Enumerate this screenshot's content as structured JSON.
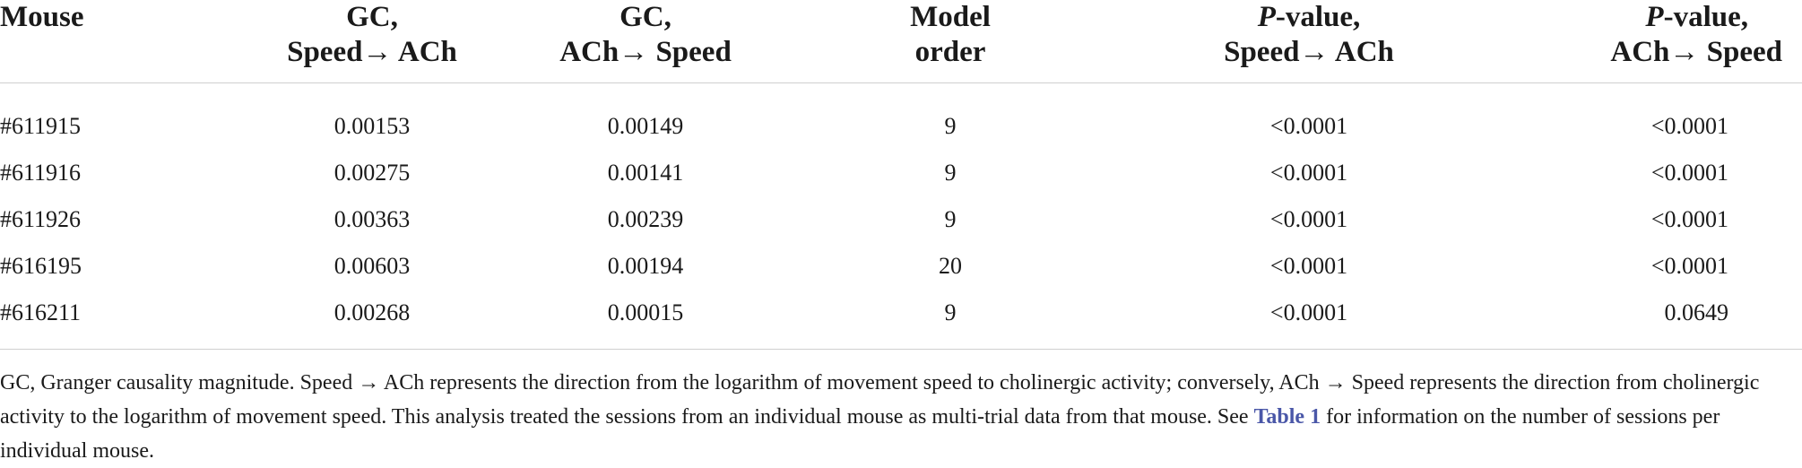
{
  "table": {
    "headers": [
      {
        "line1": "Mouse",
        "line2": ""
      },
      {
        "line1": "GC,",
        "line2": "Speed→ ACh"
      },
      {
        "line1": "GC,",
        "line2": "ACh→ Speed"
      },
      {
        "line1": "Model",
        "line2": "order"
      },
      {
        "line1_italic": "P",
        "line1_rest": "-value,",
        "line2": "Speed→ ACh"
      },
      {
        "line1_italic": "P",
        "line1_rest": "-value,",
        "line2": "ACh→ Speed"
      }
    ],
    "rows": [
      [
        "#611915",
        "0.00153",
        "0.00149",
        "9",
        "<0.0001",
        "<0.0001"
      ],
      [
        "#611916",
        "0.00275",
        "0.00141",
        "9",
        "<0.0001",
        "<0.0001"
      ],
      [
        "#611926",
        "0.00363",
        "0.00239",
        "9",
        "<0.0001",
        "<0.0001"
      ],
      [
        "#616195",
        "0.00603",
        "0.00194",
        "20",
        "<0.0001",
        "<0.0001"
      ],
      [
        "#616211",
        "0.00268",
        "0.00015",
        "9",
        "<0.0001",
        "0.0649"
      ]
    ]
  },
  "footnote": {
    "text_before": "GC, Granger causality magnitude. Speed → ACh represents the direction from the logarithm of movement speed to cholinergic activity; conversely, ACh → Speed represents the direction from cholinergic activity to the logarithm of movement speed. This analysis treated the sessions from an individual mouse as multi-trial data from that mouse. See ",
    "link_text": "Table 1",
    "text_after": " for information on the number of sessions per individual mouse."
  },
  "colors": {
    "link": "#4a57a8",
    "rule": "#cfcfcf"
  }
}
